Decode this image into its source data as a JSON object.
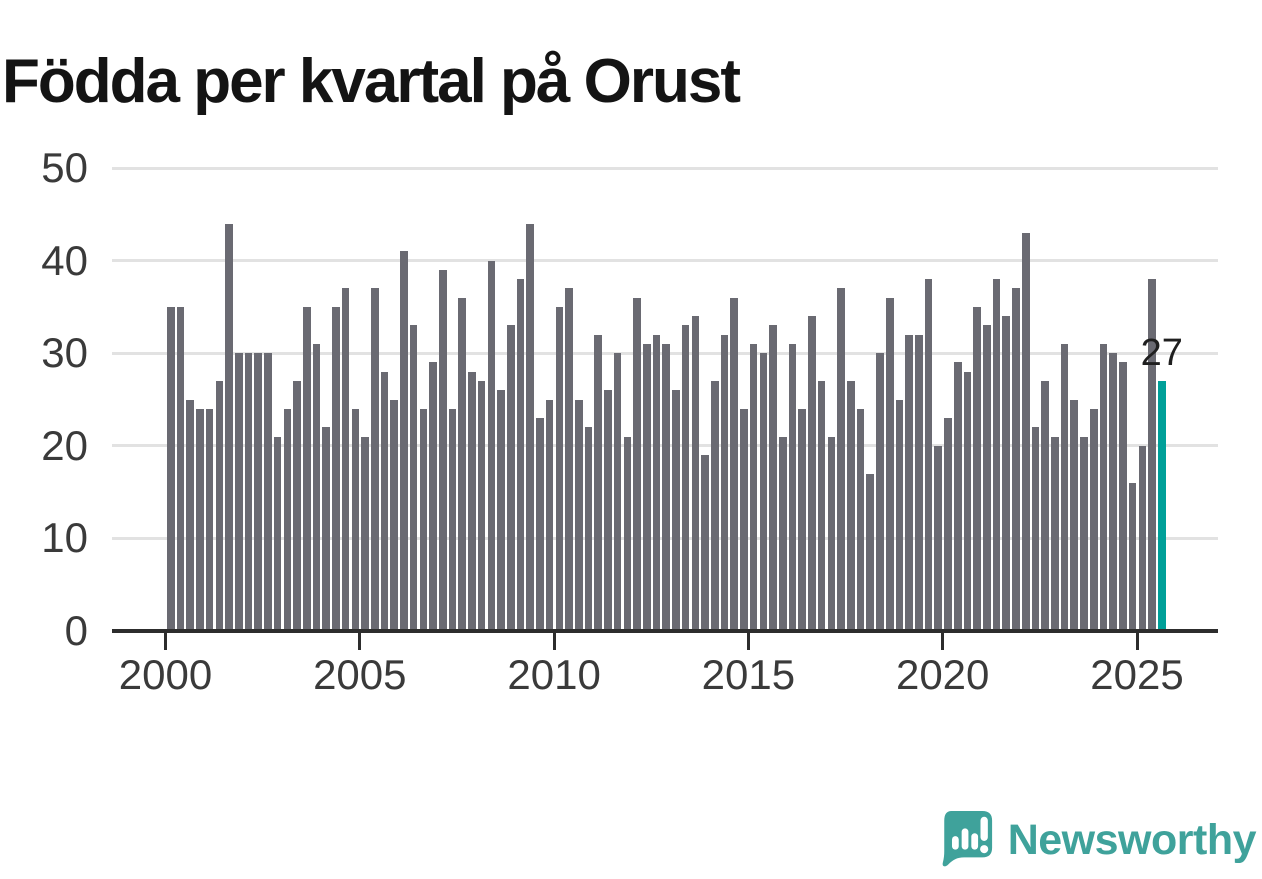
{
  "title": "Födda per kvartal på Orust",
  "colors": {
    "bar": "#6a6a72",
    "highlight": "#00a099",
    "grid": "#e2e2e2",
    "axis": "#2d2d2d",
    "tick_label": "#3a3a3a",
    "value_label": "#1f1f1f",
    "logo": "#3fa29b"
  },
  "logo": {
    "text": "Newsworthy",
    "icon": "speech-bubble-with-bar-chart-and-exclamation"
  },
  "chart_data": {
    "type": "bar",
    "title": "Födda per kvartal på Orust",
    "xlabel": "",
    "ylabel": "",
    "ylim": [
      0,
      50
    ],
    "y_ticks": [
      0,
      10,
      20,
      30,
      40,
      50
    ],
    "x_tick_years": [
      2000,
      2005,
      2010,
      2015,
      2020,
      2025
    ],
    "grid": true,
    "legend": false,
    "highlight_index": 102,
    "highlight_label": "27",
    "categories": [
      "2000 Q1",
      "2000 Q2",
      "2000 Q3",
      "2000 Q4",
      "2001 Q1",
      "2001 Q2",
      "2001 Q3",
      "2001 Q4",
      "2002 Q1",
      "2002 Q2",
      "2002 Q3",
      "2002 Q4",
      "2003 Q1",
      "2003 Q2",
      "2003 Q3",
      "2003 Q4",
      "2004 Q1",
      "2004 Q2",
      "2004 Q3",
      "2004 Q4",
      "2005 Q1",
      "2005 Q2",
      "2005 Q3",
      "2005 Q4",
      "2006 Q1",
      "2006 Q2",
      "2006 Q3",
      "2006 Q4",
      "2007 Q1",
      "2007 Q2",
      "2007 Q3",
      "2007 Q4",
      "2008 Q1",
      "2008 Q2",
      "2008 Q3",
      "2008 Q4",
      "2009 Q1",
      "2009 Q2",
      "2009 Q3",
      "2009 Q4",
      "2010 Q1",
      "2010 Q2",
      "2010 Q3",
      "2010 Q4",
      "2011 Q1",
      "2011 Q2",
      "2011 Q3",
      "2011 Q4",
      "2012 Q1",
      "2012 Q2",
      "2012 Q3",
      "2012 Q4",
      "2013 Q1",
      "2013 Q2",
      "2013 Q3",
      "2013 Q4",
      "2014 Q1",
      "2014 Q2",
      "2014 Q3",
      "2014 Q4",
      "2015 Q1",
      "2015 Q2",
      "2015 Q3",
      "2015 Q4",
      "2016 Q1",
      "2016 Q2",
      "2016 Q3",
      "2016 Q4",
      "2017 Q1",
      "2017 Q2",
      "2017 Q3",
      "2017 Q4",
      "2018 Q1",
      "2018 Q2",
      "2018 Q3",
      "2018 Q4",
      "2019 Q1",
      "2019 Q2",
      "2019 Q3",
      "2019 Q4",
      "2020 Q1",
      "2020 Q2",
      "2020 Q3",
      "2020 Q4",
      "2021 Q1",
      "2021 Q2",
      "2021 Q3",
      "2021 Q4",
      "2022 Q1",
      "2022 Q2",
      "2022 Q3",
      "2022 Q4",
      "2023 Q1",
      "2023 Q2",
      "2023 Q3",
      "2023 Q4",
      "2024 Q1",
      "2024 Q2",
      "2024 Q3",
      "2024 Q4",
      "2025 Q1",
      "2025 Q2",
      "2025 Q3"
    ],
    "values": [
      35,
      35,
      25,
      24,
      24,
      27,
      44,
      30,
      30,
      30,
      30,
      21,
      24,
      27,
      35,
      31,
      22,
      35,
      37,
      24,
      21,
      37,
      28,
      25,
      41,
      33,
      24,
      29,
      39,
      24,
      36,
      28,
      27,
      40,
      26,
      33,
      38,
      44,
      23,
      25,
      35,
      37,
      25,
      22,
      32,
      26,
      30,
      21,
      36,
      31,
      32,
      31,
      26,
      33,
      34,
      19,
      27,
      32,
      36,
      24,
      31,
      30,
      33,
      21,
      31,
      24,
      34,
      27,
      21,
      37,
      27,
      24,
      17,
      30,
      36,
      25,
      32,
      32,
      38,
      20,
      23,
      29,
      28,
      35,
      33,
      38,
      34,
      37,
      43,
      22,
      27,
      21,
      31,
      25,
      21,
      24,
      31,
      30,
      29,
      16,
      20,
      38,
      27
    ]
  }
}
